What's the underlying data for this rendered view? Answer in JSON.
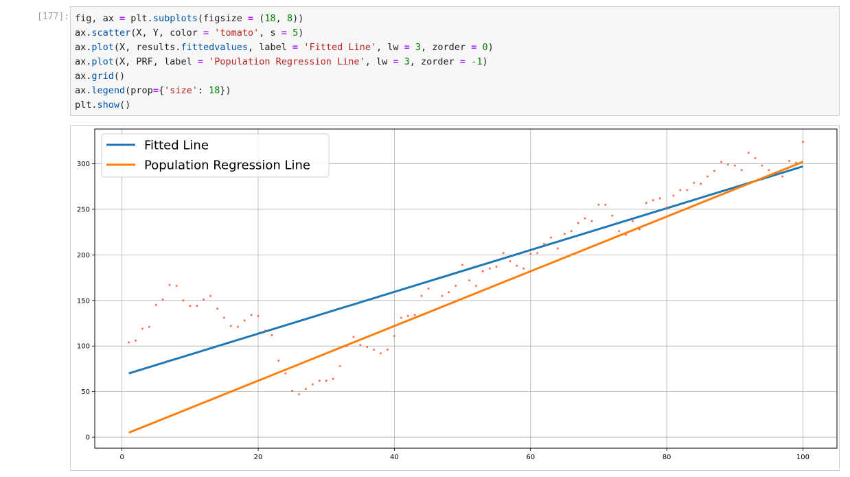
{
  "cell": {
    "prompt": "[177]:",
    "code_lines": [
      [
        {
          "t": "fig, ax "
        },
        {
          "t": "=",
          "c": "op"
        },
        {
          "t": " plt."
        },
        {
          "t": "subplots",
          "c": "attr"
        },
        {
          "t": "(figsize "
        },
        {
          "t": "=",
          "c": "op"
        },
        {
          "t": " ("
        },
        {
          "t": "18",
          "c": "num"
        },
        {
          "t": ", "
        },
        {
          "t": "8",
          "c": "num"
        },
        {
          "t": "))"
        }
      ],
      [
        {
          "t": "ax."
        },
        {
          "t": "scatter",
          "c": "attr"
        },
        {
          "t": "(X, Y, color "
        },
        {
          "t": "=",
          "c": "op"
        },
        {
          "t": " "
        },
        {
          "t": "'tomato'",
          "c": "str"
        },
        {
          "t": ", s "
        },
        {
          "t": "=",
          "c": "op"
        },
        {
          "t": " "
        },
        {
          "t": "5",
          "c": "num"
        },
        {
          "t": ")"
        }
      ],
      [
        {
          "t": "ax."
        },
        {
          "t": "plot",
          "c": "attr"
        },
        {
          "t": "(X, results."
        },
        {
          "t": "fittedvalues",
          "c": "attr"
        },
        {
          "t": ", label "
        },
        {
          "t": "=",
          "c": "op"
        },
        {
          "t": " "
        },
        {
          "t": "'Fitted Line'",
          "c": "str"
        },
        {
          "t": ", lw "
        },
        {
          "t": "=",
          "c": "op"
        },
        {
          "t": " "
        },
        {
          "t": "3",
          "c": "num"
        },
        {
          "t": ", zorder "
        },
        {
          "t": "=",
          "c": "op"
        },
        {
          "t": " "
        },
        {
          "t": "0",
          "c": "num"
        },
        {
          "t": ")"
        }
      ],
      [
        {
          "t": "ax."
        },
        {
          "t": "plot",
          "c": "attr"
        },
        {
          "t": "(X, PRF, label "
        },
        {
          "t": "=",
          "c": "op"
        },
        {
          "t": " "
        },
        {
          "t": "'Population Regression Line'",
          "c": "str"
        },
        {
          "t": ", lw "
        },
        {
          "t": "=",
          "c": "op"
        },
        {
          "t": " "
        },
        {
          "t": "3",
          "c": "num"
        },
        {
          "t": ", zorder "
        },
        {
          "t": "=",
          "c": "op"
        },
        {
          "t": " "
        },
        {
          "t": "-1",
          "c": "num"
        },
        {
          "t": ")"
        }
      ],
      [
        {
          "t": "ax."
        },
        {
          "t": "grid",
          "c": "attr"
        },
        {
          "t": "()"
        }
      ],
      [
        {
          "t": "ax."
        },
        {
          "t": "legend",
          "c": "attr"
        },
        {
          "t": "(prop"
        },
        {
          "t": "=",
          "c": "op"
        },
        {
          "t": "{"
        },
        {
          "t": "'size'",
          "c": "str"
        },
        {
          "t": ": "
        },
        {
          "t": "18",
          "c": "num"
        },
        {
          "t": "})"
        }
      ],
      [
        {
          "t": "plt."
        },
        {
          "t": "show",
          "c": "attr"
        },
        {
          "t": "()"
        }
      ]
    ]
  },
  "chart_data": {
    "type": "line",
    "x_ticks": [
      0,
      20,
      40,
      60,
      80,
      100
    ],
    "y_ticks": [
      0,
      50,
      100,
      150,
      200,
      250,
      300
    ],
    "xlim": [
      -4,
      105
    ],
    "ylim": [
      -12,
      338
    ],
    "grid": true,
    "legend": {
      "position": "top-left"
    },
    "series": [
      {
        "name": "Fitted Line",
        "kind": "line",
        "color": "#1f77b4",
        "x": [
          1,
          100
        ],
        "y": [
          70,
          297
        ]
      },
      {
        "name": "Population Regression Line",
        "kind": "line",
        "color": "#ff7f0e",
        "x": [
          1,
          100
        ],
        "y": [
          5,
          302
        ]
      },
      {
        "name": "",
        "kind": "scatter",
        "color": "#ff6347",
        "x": [
          1,
          2,
          3,
          4,
          5,
          6,
          7,
          8,
          9,
          10,
          11,
          12,
          13,
          14,
          15,
          16,
          17,
          18,
          19,
          20,
          21,
          22,
          23,
          24,
          25,
          26,
          27,
          28,
          29,
          30,
          31,
          32,
          33,
          34,
          35,
          36,
          37,
          38,
          39,
          40,
          41,
          42,
          43,
          44,
          45,
          46,
          47,
          48,
          49,
          50,
          51,
          52,
          53,
          54,
          55,
          56,
          57,
          58,
          59,
          60,
          61,
          62,
          63,
          64,
          65,
          66,
          67,
          68,
          69,
          70,
          71,
          72,
          73,
          74,
          75,
          76,
          77,
          78,
          79,
          80,
          81,
          82,
          83,
          84,
          85,
          86,
          87,
          88,
          89,
          90,
          91,
          92,
          93,
          94,
          95,
          96,
          97,
          98,
          99,
          100
        ],
        "y": [
          104,
          106,
          119,
          121,
          145,
          151,
          167,
          166,
          150,
          144,
          144,
          151,
          155,
          141,
          131,
          122,
          121,
          128,
          134,
          133,
          117,
          112,
          84,
          70,
          51,
          47,
          53,
          58,
          62,
          62,
          64,
          78,
          100,
          110,
          101,
          99,
          96,
          92,
          96,
          111,
          131,
          133,
          134,
          155,
          163,
          140,
          155,
          159,
          166,
          189,
          172,
          166,
          182,
          185,
          187,
          202,
          193,
          188,
          185,
          201,
          202,
          212,
          219,
          207,
          223,
          226,
          235,
          240,
          237,
          255,
          255,
          243,
          226,
          222,
          237,
          228,
          257,
          260,
          262,
          252,
          265,
          271,
          271,
          279,
          278,
          286,
          292,
          302,
          299,
          298,
          293,
          312,
          306,
          298,
          293,
          290,
          286,
          303,
          301,
          324
        ]
      }
    ]
  }
}
